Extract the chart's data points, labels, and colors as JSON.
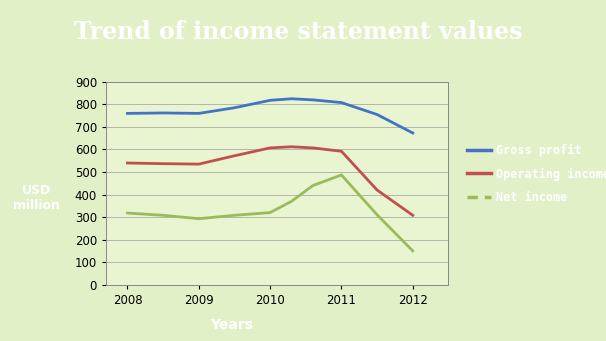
{
  "title": "Trend of income statement values",
  "xlabel": "Years",
  "ylabel": "USD\nmillion",
  "years": [
    2008,
    2008.5,
    2009,
    2009.5,
    2010,
    2010.3,
    2010.6,
    2011,
    2011.5,
    2012
  ],
  "gross_profit": [
    760,
    762,
    760,
    785,
    818,
    825,
    820,
    808,
    755,
    673
  ],
  "operating_income": [
    540,
    537,
    535,
    572,
    607,
    612,
    607,
    592,
    420,
    308
  ],
  "net_income": [
    318,
    308,
    293,
    308,
    320,
    370,
    440,
    487,
    310,
    150
  ],
  "gross_profit_color": "#4472c4",
  "operating_income_color": "#c0504d",
  "net_income_color": "#9bbb59",
  "bg_color": "#e2f0c8",
  "plot_bg_color": "#e8f5d0",
  "title_bg_color": "#6b8e23",
  "legend_bg_color": "#7aaa2a",
  "ylabel_bg_color": "#6b8e23",
  "xlabel_bg_color": "#5a7a1e",
  "ylim": [
    0,
    900
  ],
  "yticks": [
    0,
    100,
    200,
    300,
    400,
    500,
    600,
    700,
    800,
    900
  ],
  "xlim": [
    2007.7,
    2012.5
  ],
  "xticks": [
    2008,
    2009,
    2010,
    2011,
    2012
  ]
}
